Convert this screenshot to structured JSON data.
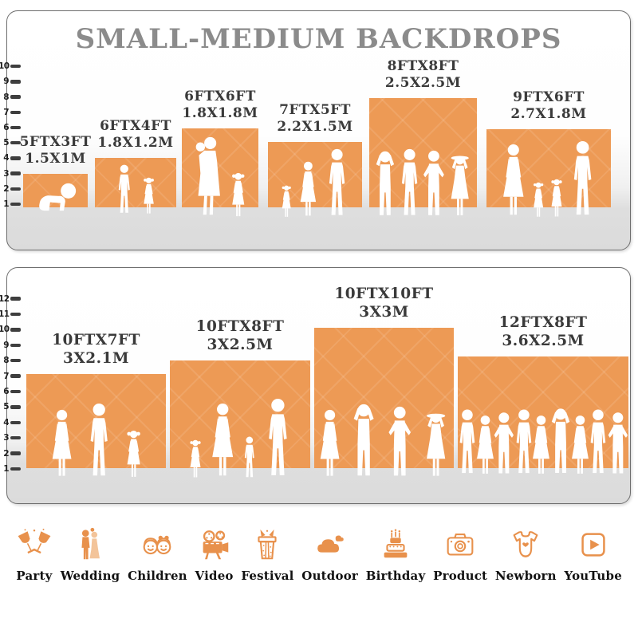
{
  "title": "SMALL-MEDIUM BACKDROPS",
  "colors": {
    "backdrop_orange": "#ED9A55",
    "icon_orange": "#E8914C",
    "title_gray": "#8B8B8B",
    "label_dark": "#3A3A3A",
    "panel_border": "#6E6E6E",
    "floor_gray": "#DBDBDB",
    "ruler_tick": "#3E3E3E",
    "silhouette_white": "#FFFFFF"
  },
  "panels": [
    {
      "ruler": [
        "1",
        "2",
        "3",
        "4",
        "5",
        "6",
        "7",
        "8",
        "9",
        "10"
      ],
      "backdrops": [
        {
          "size_ft": "5FTX3FT",
          "size_m": "1.5X1M",
          "figures": [
            "baby-crawl"
          ]
        },
        {
          "size_ft": "6FTX4FT",
          "size_m": "1.8X1.2M",
          "figures": [
            "boy",
            "girl"
          ]
        },
        {
          "size_ft": "6FTX6FT",
          "size_m": "1.8X1.8M",
          "figures": [
            "woman-baby",
            "girl"
          ]
        },
        {
          "size_ft": "7FTX5FT",
          "size_m": "2.2X1.5M",
          "figures": [
            "toddler",
            "woman",
            "man"
          ]
        },
        {
          "size_ft": "8FTX8FT",
          "size_m": "2.5X2.5M",
          "figures": [
            "man-hands-head",
            "man",
            "man-akimbo",
            "woman-hat"
          ]
        },
        {
          "size_ft": "9FTX6FT",
          "size_m": "2.7X1.8M",
          "figures": [
            "woman",
            "toddler",
            "girl",
            "man"
          ]
        }
      ]
    },
    {
      "ruler": [
        "1",
        "2",
        "3",
        "4",
        "5",
        "6",
        "7",
        "8",
        "9",
        "10",
        "11",
        "12"
      ],
      "backdrops": [
        {
          "size_ft": "10FTX7FT",
          "size_m": "3X2.1M",
          "figures": [
            "woman",
            "man",
            "girl"
          ]
        },
        {
          "size_ft": "10FTX8FT",
          "size_m": "3X2.5M",
          "figures": [
            "girl",
            "woman",
            "boy",
            "man"
          ]
        },
        {
          "size_ft": "10FTX10FT",
          "size_m": "3X3M",
          "figures": [
            "woman",
            "man-hands-head",
            "man-akimbo",
            "woman-hat"
          ]
        },
        {
          "size_ft": "12FTX8FT",
          "size_m": "3.6X2.5M",
          "figures": [
            "man",
            "woman",
            "man-akimbo",
            "man",
            "woman",
            "man-hands-head",
            "woman",
            "man",
            "man-akimbo"
          ]
        }
      ]
    }
  ],
  "categories": [
    {
      "label": "Party",
      "icon": "champagne-glasses-icon"
    },
    {
      "label": "Wedding",
      "icon": "wedding-couple-icon"
    },
    {
      "label": "Children",
      "icon": "children-faces-icon"
    },
    {
      "label": "Video",
      "icon": "movie-camera-icon"
    },
    {
      "label": "Festival",
      "icon": "gift-box-icon"
    },
    {
      "label": "Outdoor",
      "icon": "cloud-icon"
    },
    {
      "label": "Birthday",
      "icon": "birthday-cake-icon"
    },
    {
      "label": "Product",
      "icon": "photo-camera-icon"
    },
    {
      "label": "Newborn",
      "icon": "baby-onesie-icon"
    },
    {
      "label": "YouTube",
      "icon": "play-button-icon"
    }
  ]
}
